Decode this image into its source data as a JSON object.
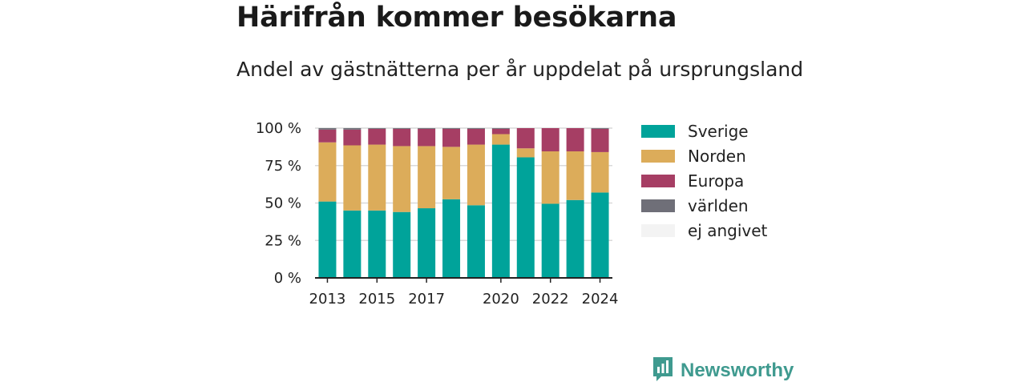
{
  "title": "Härifrån kommer besökarna",
  "subtitle": "Andel av gästnätterna per år uppdelat på ursprungsland",
  "brand": {
    "label": "Newsworthy",
    "icon": "newsworthy-logo-icon",
    "color": "#3f9a8f"
  },
  "legend": [
    {
      "label": "Sverige",
      "color": "#00a39a"
    },
    {
      "label": "Norden",
      "color": "#dcac5a"
    },
    {
      "label": "Europa",
      "color": "#a63e64"
    },
    {
      "label": "världen",
      "color": "#6f6f78"
    },
    {
      "label": "ej angivet",
      "color": "#f3f3f3"
    }
  ],
  "chart_data": {
    "type": "bar",
    "stacked": true,
    "categories": [
      "2013",
      "2014",
      "2015",
      "2016",
      "2017",
      "2018",
      "2019",
      "2020",
      "2021",
      "2022",
      "2023",
      "2024"
    ],
    "x_tick_labels": [
      "2013",
      "",
      "2015",
      "",
      "2017",
      "",
      "",
      "2020",
      "",
      "2022",
      "",
      "2024"
    ],
    "y_tick_labels": [
      "0 %",
      "25 %",
      "50 %",
      "75 %",
      "100 %"
    ],
    "y_ticks": [
      0,
      25,
      50,
      75,
      100
    ],
    "ylim": [
      0,
      100
    ],
    "grid": true,
    "legend_position": "right",
    "series": [
      {
        "name": "Sverige",
        "color": "#00a39a",
        "values": [
          51,
          45,
          45,
          44,
          46.5,
          52.5,
          48.5,
          89,
          80.5,
          49.5,
          52,
          57
        ]
      },
      {
        "name": "Norden",
        "color": "#dcac5a",
        "values": [
          39.5,
          43.5,
          44,
          44,
          41.5,
          35,
          40.5,
          7,
          6,
          35,
          32.5,
          27
        ]
      },
      {
        "name": "Europa",
        "color": "#a63e64",
        "values": [
          8.5,
          10.5,
          10.5,
          11.5,
          11.5,
          12,
          10.5,
          3.5,
          13.5,
          15.5,
          15.5,
          15.5
        ]
      },
      {
        "name": "världen",
        "color": "#6f6f78",
        "values": [
          1,
          1,
          0.5,
          0.5,
          0.5,
          0.5,
          0.5,
          0.5,
          0,
          0,
          0,
          0.5
        ]
      },
      {
        "name": "ej angivet",
        "color": "#f3f3f3",
        "values": [
          0,
          0,
          0,
          0,
          0,
          0,
          0,
          0,
          0,
          0,
          0,
          0
        ]
      }
    ]
  }
}
